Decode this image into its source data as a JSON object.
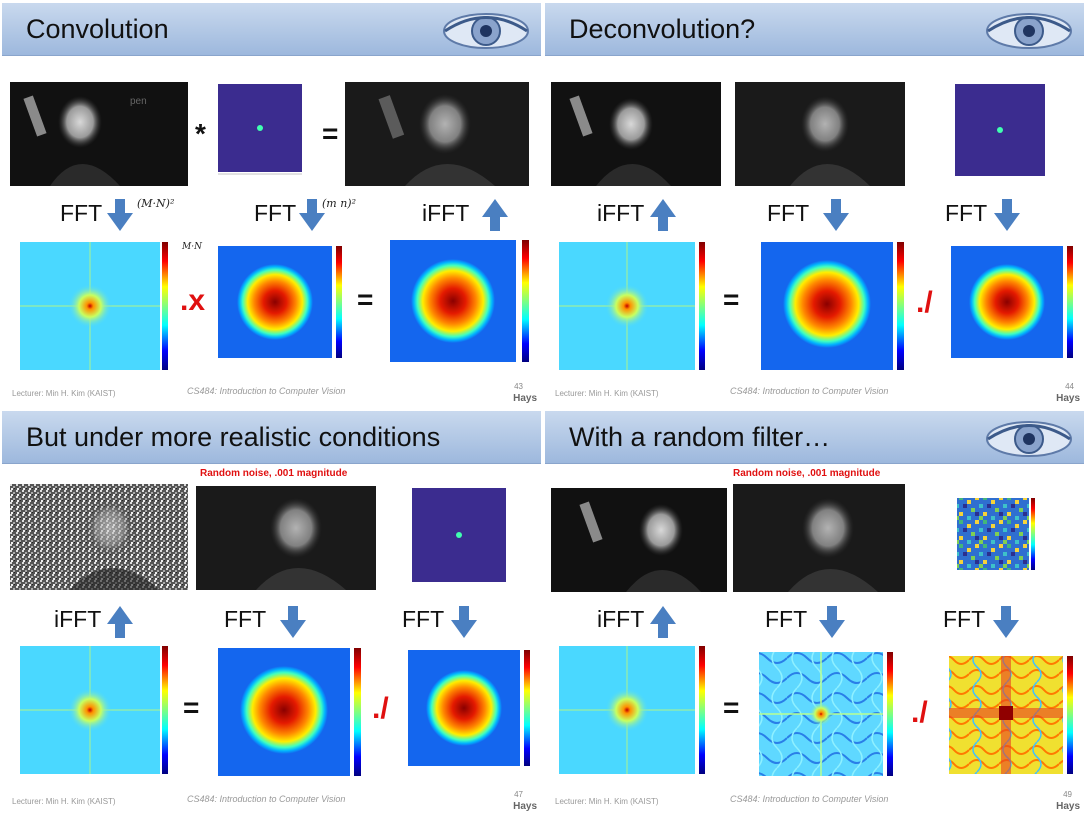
{
  "colors": {
    "banner": "#aac3e6",
    "arrow": "#4a7fc1",
    "operator_red": "#e01010",
    "kernel_bg": "#3b2c8f"
  },
  "slides": [
    {
      "title": "Convolution",
      "ops": {
        "conv": "*",
        "eq1": "=",
        "mult": ".x",
        "eq2": "="
      },
      "labels": {
        "fft1": "FFT",
        "fft2": "FFT",
        "ifft": "iFFT"
      },
      "handwritten": {
        "a": "(M·N)²",
        "b": "(m n)²",
        "c": "M·N"
      },
      "footer": {
        "lecturer": "Lecturer: Min H. Kim (KAIST)",
        "course": "CS484: Introduction to Computer Vision",
        "page": "43",
        "credit": "Hays"
      }
    },
    {
      "title": "Deconvolution?",
      "ops": {
        "eq": "=",
        "div": "./"
      },
      "labels": {
        "ifft": "iFFT",
        "fft1": "FFT",
        "fft2": "FFT"
      },
      "footer": {
        "lecturer": "Lecturer: Min H. Kim (KAIST)",
        "course": "CS484: Introduction to Computer Vision",
        "page": "44",
        "credit": "Hays"
      }
    },
    {
      "title": "But under more realistic conditions",
      "noise_caption": "Random noise, .001 magnitude",
      "ops": {
        "eq": "=",
        "div": "./"
      },
      "labels": {
        "ifft": "iFFT",
        "fft1": "FFT",
        "fft2": "FFT"
      },
      "footer": {
        "lecturer": "Lecturer: Min H. Kim (KAIST)",
        "course": "CS484: Introduction to Computer Vision",
        "page": "47",
        "credit": "Hays"
      }
    },
    {
      "title": "With a random filter…",
      "noise_caption": "Random noise, .001 magnitude",
      "ops": {
        "eq": "=",
        "div": "./"
      },
      "labels": {
        "ifft": "iFFT",
        "fft1": "FFT",
        "fft2": "FFT"
      },
      "footer": {
        "lecturer": "Lecturer: Min H. Kim (KAIST)",
        "course": "CS484: Introduction to Computer Vision",
        "page": "49",
        "credit": "Hays"
      }
    }
  ]
}
